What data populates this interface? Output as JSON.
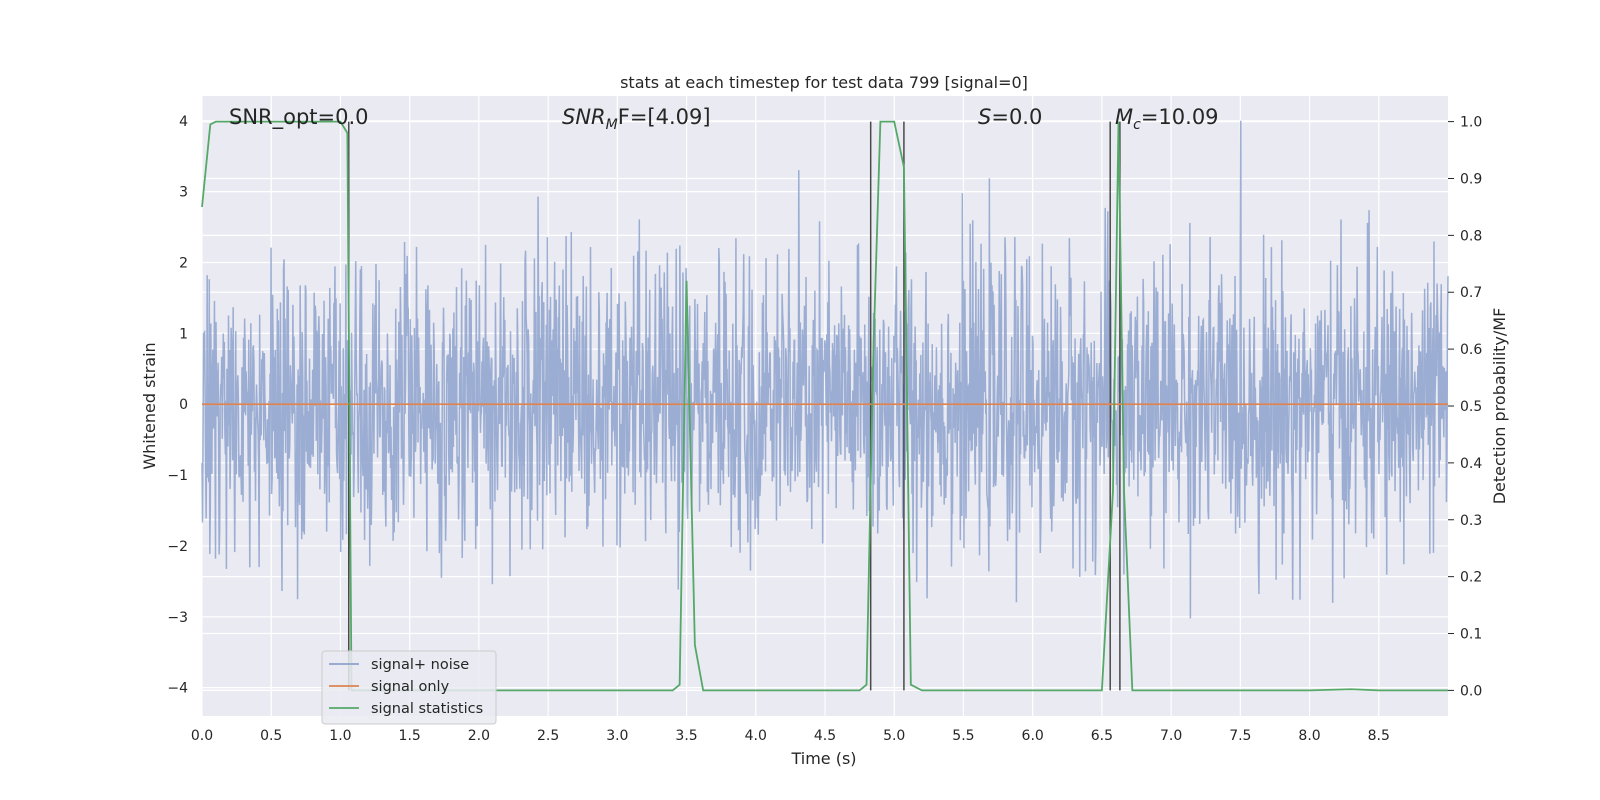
{
  "chart_data": {
    "type": "line",
    "title": "stats at each timestep for test data 799 [signal=0]",
    "xlabel": "Time (s)",
    "ylabel": "Whitened strain",
    "y2label": "Detection probability/MF",
    "xlim": [
      0.0,
      9.0
    ],
    "ylim": [
      -4.4,
      4.35
    ],
    "y2lim": [
      -0.045,
      1.045
    ],
    "x_ticks": [
      "0.0",
      "0.5",
      "1.0",
      "1.5",
      "2.0",
      "2.5",
      "3.0",
      "3.5",
      "4.0",
      "4.5",
      "5.0",
      "5.5",
      "6.0",
      "6.5",
      "7.0",
      "7.5",
      "8.0",
      "8.5"
    ],
    "x_tick_values": [
      0.0,
      0.5,
      1.0,
      1.5,
      2.0,
      2.5,
      3.0,
      3.5,
      4.0,
      4.5,
      5.0,
      5.5,
      6.0,
      6.5,
      7.0,
      7.5,
      8.0,
      8.5
    ],
    "y_ticks": [
      "−4",
      "−3",
      "−2",
      "−1",
      "0",
      "1",
      "2",
      "3",
      "4"
    ],
    "y_tick_values": [
      -4,
      -3,
      -2,
      -1,
      0,
      1,
      2,
      3,
      4
    ],
    "y2_ticks": [
      "0.0",
      "0.1",
      "0.2",
      "0.3",
      "0.4",
      "0.5",
      "0.6",
      "0.7",
      "0.8",
      "0.9",
      "1.0"
    ],
    "y2_tick_values": [
      0.0,
      0.1,
      0.2,
      0.3,
      0.4,
      0.5,
      0.6,
      0.7,
      0.8,
      0.9,
      1.0
    ],
    "grid": true,
    "legend_position": "lower-left",
    "annotations": {
      "snr_opt": "SNR_opt=0.0",
      "snr_mf_main": "SNR",
      "snr_mf_sub": "M",
      "snr_mf_rest": "F=[4.09]",
      "s_main": "S",
      "s_rest": "=0.0",
      "mc_main": "M",
      "mc_sub": "c",
      "mc_rest": "=10.09"
    },
    "series": [
      {
        "name": "signal+ noise",
        "color": "#8da2cc",
        "noise_std": 1.0,
        "noise_points": 2400,
        "peak_range": [
          -4.0,
          4.0
        ]
      },
      {
        "name": "signal only",
        "color": "#dd8452",
        "x": [
          0.0,
          9.0
        ],
        "y": [
          0.0,
          0.0
        ]
      },
      {
        "name": "signal statistics",
        "color": "#55a868",
        "axis": "right",
        "x": [
          0.0,
          0.06,
          0.1,
          0.2,
          0.5,
          0.8,
          1.0,
          1.05,
          1.08,
          1.12,
          1.2,
          1.5,
          2.0,
          2.5,
          3.0,
          3.4,
          3.45,
          3.5,
          3.56,
          3.62,
          3.8,
          4.2,
          4.5,
          4.75,
          4.8,
          4.85,
          4.9,
          5.0,
          5.07,
          5.12,
          5.2,
          5.5,
          6.0,
          6.3,
          6.5,
          6.58,
          6.62,
          6.66,
          6.72,
          6.8,
          7.5,
          8.0,
          8.3,
          8.5,
          9.0
        ],
        "y": [
          0.85,
          0.995,
          1.0,
          1.0,
          1.0,
          1.0,
          1.0,
          0.98,
          0.0,
          0.0,
          0.0,
          0.0,
          0.0,
          0.0,
          0.0,
          0.0,
          0.01,
          0.72,
          0.08,
          0.0,
          0.0,
          0.0,
          0.0,
          0.0,
          0.01,
          0.6,
          1.0,
          1.0,
          0.92,
          0.01,
          0.0,
          0.0,
          0.0,
          0.0,
          0.0,
          0.35,
          1.0,
          0.35,
          0.0,
          0.0,
          0.0,
          0.0,
          0.002,
          0.0,
          0.0
        ]
      }
    ],
    "vertical_markers": [
      1.06,
      4.83,
      5.07,
      6.56,
      6.63
    ]
  }
}
